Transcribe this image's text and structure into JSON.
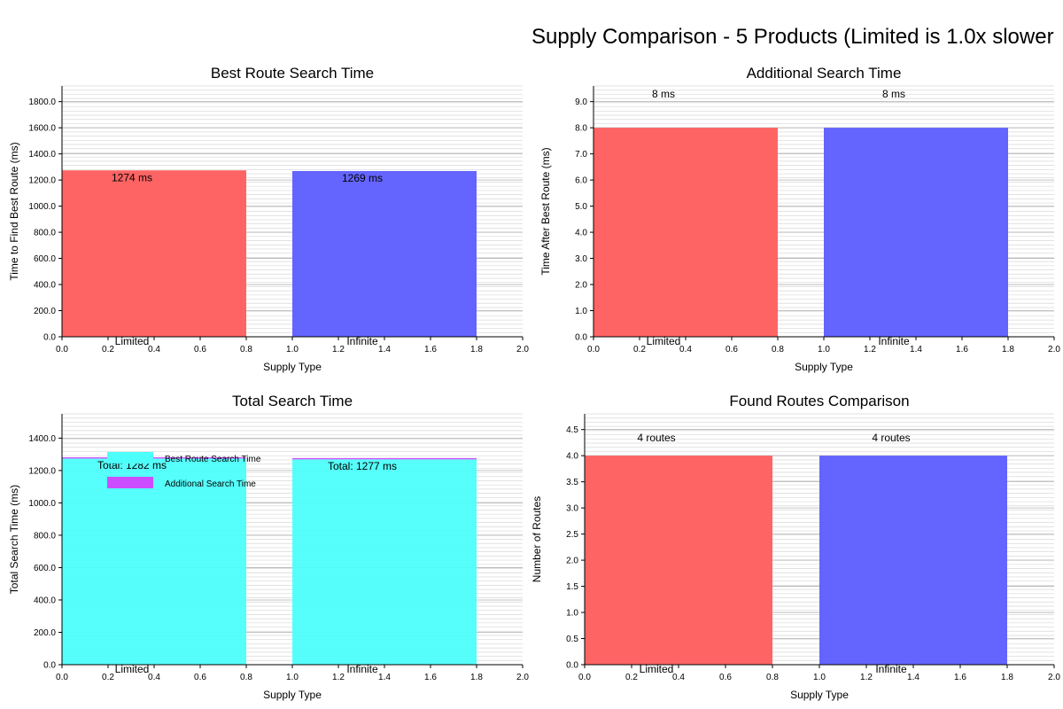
{
  "figure": {
    "suptitle": "Supply Comparison - 5 Products (Limited is 1.0x slower",
    "colors": {
      "limited": "#ff6464",
      "infinite": "#6464ff",
      "best": "#4dfffb",
      "additional": "#cc4dff"
    }
  },
  "chart_data": [
    {
      "id": "best",
      "type": "bar",
      "title": "Best Route Search Time",
      "xlabel": "Supply Type",
      "ylabel": "Time to Find Best Route (ms)",
      "xlim": [
        0,
        2.0
      ],
      "ylim": [
        0,
        1920
      ],
      "xticks": [
        "0.0",
        "0.2",
        "0.4",
        "0.6",
        "0.8",
        "1.0",
        "1.2",
        "1.4",
        "1.6",
        "1.8",
        "2.0"
      ],
      "yticks": [
        "0.0",
        "200.0",
        "400.0",
        "600.0",
        "800.0",
        "1000.0",
        "1200.0",
        "1400.0",
        "1600.0",
        "1800.0"
      ],
      "categories": [
        "Limited",
        "Infinite"
      ],
      "values": [
        1274,
        1269
      ],
      "data_labels": [
        "1274 ms",
        "1269 ms"
      ],
      "grid": true
    },
    {
      "id": "additional",
      "type": "bar",
      "title": "Additional Search Time",
      "xlabel": "Supply Type",
      "ylabel": "Time After Best Route (ms)",
      "xlim": [
        0,
        2.0
      ],
      "ylim": [
        0,
        9.6
      ],
      "xticks": [
        "0.0",
        "0.2",
        "0.4",
        "0.6",
        "0.8",
        "1.0",
        "1.2",
        "1.4",
        "1.6",
        "1.8",
        "2.0"
      ],
      "yticks": [
        "0.0",
        "1.0",
        "2.0",
        "3.0",
        "4.0",
        "5.0",
        "6.0",
        "7.0",
        "8.0",
        "9.0"
      ],
      "categories": [
        "Limited",
        "Infinite"
      ],
      "values": [
        8,
        8
      ],
      "data_labels": [
        "8 ms",
        "8 ms"
      ],
      "grid": true
    },
    {
      "id": "total",
      "type": "bar",
      "stacked": true,
      "title": "Total Search Time",
      "xlabel": "Supply Type",
      "ylabel": "Total Search Time (ms)",
      "xlim": [
        0,
        2.0
      ],
      "ylim": [
        0,
        1550
      ],
      "xticks": [
        "0.0",
        "0.2",
        "0.4",
        "0.6",
        "0.8",
        "1.0",
        "1.2",
        "1.4",
        "1.6",
        "1.8",
        "2.0"
      ],
      "yticks": [
        "0.0",
        "200.0",
        "400.0",
        "600.0",
        "800.0",
        "1000.0",
        "1200.0",
        "1400.0"
      ],
      "categories": [
        "Limited",
        "Infinite"
      ],
      "series": [
        {
          "name": "Best Route Search Time",
          "values": [
            1274,
            1269
          ]
        },
        {
          "name": "Additional Search Time",
          "values": [
            8,
            8
          ]
        }
      ],
      "data_labels": [
        "Total: 1282 ms",
        "Total: 1277 ms"
      ],
      "legend": "upper-left",
      "grid": true
    },
    {
      "id": "routes",
      "type": "bar",
      "title": "Found Routes Comparison",
      "xlabel": "Supply Type",
      "ylabel": "Number of Routes",
      "xlim": [
        0,
        2.0
      ],
      "ylim": [
        0,
        4.8
      ],
      "xticks": [
        "0.0",
        "0.2",
        "0.4",
        "0.6",
        "0.8",
        "1.0",
        "1.2",
        "1.4",
        "1.6",
        "1.8",
        "2.0"
      ],
      "yticks": [
        "0.0",
        "0.5",
        "1.0",
        "1.5",
        "2.0",
        "2.5",
        "3.0",
        "3.5",
        "4.0",
        "4.5"
      ],
      "categories": [
        "Limited",
        "Infinite"
      ],
      "values": [
        4,
        4
      ],
      "data_labels": [
        "4 routes",
        "4 routes"
      ],
      "grid": true
    }
  ]
}
